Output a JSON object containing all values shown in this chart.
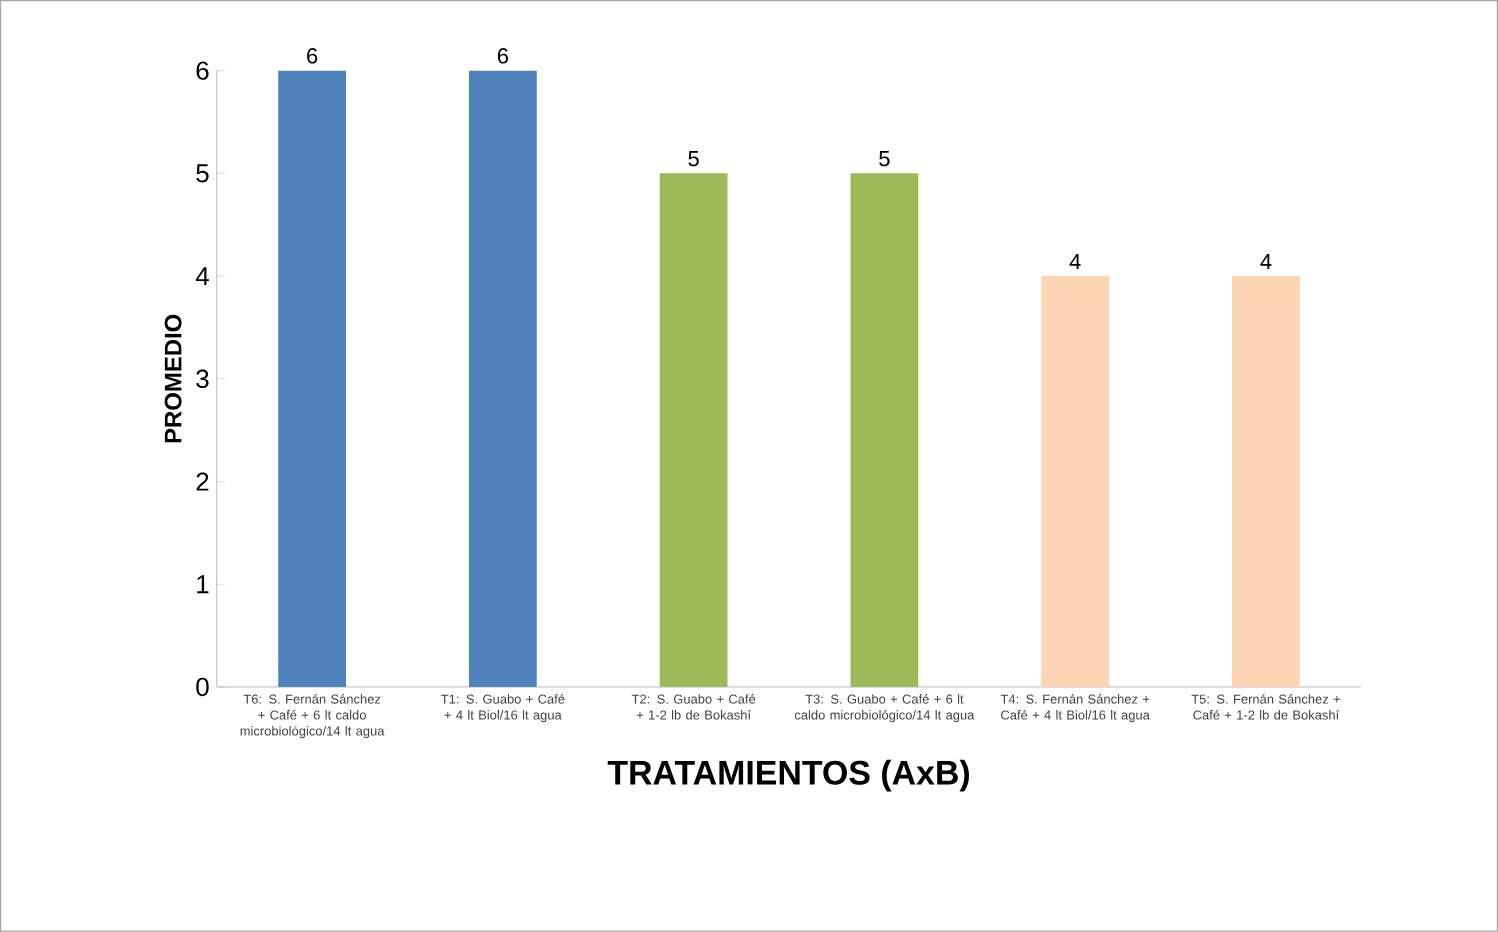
{
  "chart_data": {
    "type": "bar",
    "categories": [
      "T6: S. Fernán Sánchez + Café + 6 lt caldo microbiológico/14 lt agua",
      "T1: S. Guabo + Café + 4 lt Biol/16 lt agua",
      "T2: S. Guabo + Café + 1-2 lb de Bokashí",
      "T3: S. Guabo + Café + 6 lt caldo microbiológico/14 lt agua",
      "T4: S. Fernán Sánchez + Café + 4 lt Biol/16 lt agua",
      "T5: S. Fernán Sánchez + Café + 1-2 lb de Bokashí"
    ],
    "values": [
      6,
      6,
      5,
      5,
      4,
      4
    ],
    "colors": [
      "#4f81bd",
      "#4f81bd",
      "#9bbb59",
      "#9bbb59",
      "#fcd5b5",
      "#fcd5b5"
    ],
    "xlabel": "TRATAMIENTOS (AxB)",
    "ylabel": "PROMEDIO",
    "ylim": [
      0,
      6
    ],
    "yticks": [
      0,
      1,
      2,
      3,
      4,
      5,
      6
    ],
    "data_labels": true,
    "grid": false
  }
}
